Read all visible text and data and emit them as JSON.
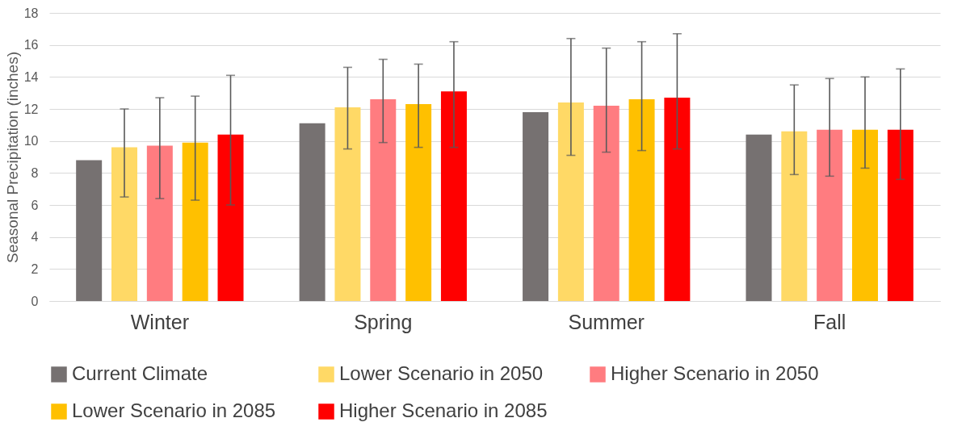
{
  "chart_data": {
    "type": "bar",
    "ylabel": "Seasonal Precipitation (inches)",
    "categories": [
      "Winter",
      "Spring",
      "Summer",
      "Fall"
    ],
    "series": [
      {
        "name": "Current Climate",
        "color": "#767171",
        "values": [
          8.8,
          11.1,
          11.8,
          10.4
        ]
      },
      {
        "name": "Lower Scenario in 2050",
        "color": "#ffd966",
        "values": [
          9.6,
          12.1,
          12.4,
          10.6
        ],
        "errors": [
          [
            6.5,
            12.0
          ],
          [
            9.5,
            14.6
          ],
          [
            9.1,
            16.4
          ],
          [
            7.9,
            13.5
          ]
        ]
      },
      {
        "name": "Higher Scenario in 2050",
        "color": "#ff7c80",
        "values": [
          9.7,
          12.6,
          12.2,
          10.7
        ],
        "errors": [
          [
            6.4,
            12.7
          ],
          [
            9.9,
            15.1
          ],
          [
            9.3,
            15.8
          ],
          [
            7.8,
            13.9
          ]
        ]
      },
      {
        "name": "Lower Scenario in 2085",
        "color": "#ffc000",
        "values": [
          9.9,
          12.3,
          12.6,
          10.7
        ],
        "errors": [
          [
            6.3,
            12.8
          ],
          [
            9.6,
            14.8
          ],
          [
            9.4,
            16.2
          ],
          [
            8.3,
            14.0
          ]
        ]
      },
      {
        "name": "Higher Scenario in 2085",
        "color": "#ff0000",
        "values": [
          10.4,
          13.1,
          12.7,
          10.7
        ],
        "errors": [
          [
            6.0,
            14.1
          ],
          [
            9.6,
            16.2
          ],
          [
            9.5,
            16.7
          ],
          [
            7.6,
            14.5
          ]
        ]
      }
    ],
    "ylim": [
      0,
      18
    ],
    "yticks": [
      0,
      2,
      4,
      6,
      8,
      10,
      12,
      14,
      16,
      18
    ],
    "grid": "y",
    "legend": "bottom"
  }
}
